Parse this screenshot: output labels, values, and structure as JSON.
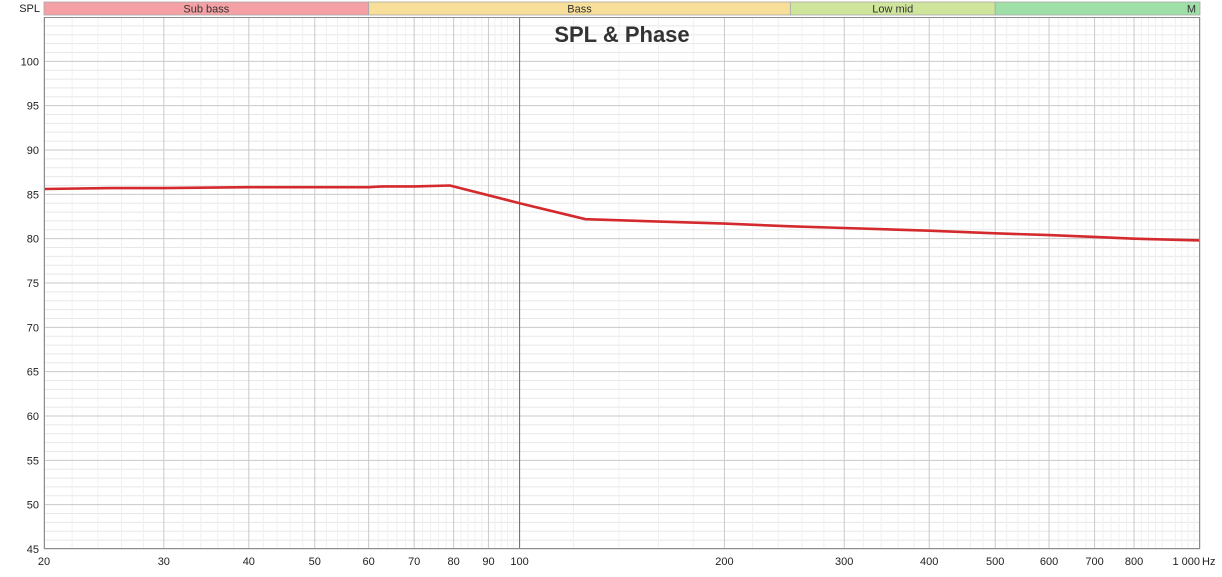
{
  "chart_data": {
    "type": "line",
    "title": "SPL & Phase",
    "ylabel": "SPL",
    "xunit": "Hz",
    "xscale": "log",
    "xlim": [
      20,
      1000
    ],
    "ylim": [
      45,
      105
    ],
    "grid": true,
    "x_ticks": [
      {
        "value": 20,
        "label": "20"
      },
      {
        "value": 30,
        "label": "30"
      },
      {
        "value": 40,
        "label": "40"
      },
      {
        "value": 50,
        "label": "50"
      },
      {
        "value": 60,
        "label": "60"
      },
      {
        "value": 70,
        "label": "70"
      },
      {
        "value": 80,
        "label": "80"
      },
      {
        "value": 90,
        "label": "90"
      },
      {
        "value": 100,
        "label": "100"
      },
      {
        "value": 200,
        "label": "200"
      },
      {
        "value": 300,
        "label": "300"
      },
      {
        "value": 400,
        "label": "400"
      },
      {
        "value": 500,
        "label": "500"
      },
      {
        "value": 600,
        "label": "600"
      },
      {
        "value": 700,
        "label": "700"
      },
      {
        "value": 800,
        "label": "800"
      },
      {
        "value": 1000,
        "label": "1 000"
      }
    ],
    "y_ticks": [
      45,
      50,
      55,
      60,
      65,
      70,
      75,
      80,
      85,
      90,
      95,
      100
    ],
    "bands": [
      {
        "label": "Sub bass",
        "from": 20,
        "to": 60,
        "color": "#f4a0a4"
      },
      {
        "label": "Bass",
        "from": 60,
        "to": 250,
        "color": "#f7df9a"
      },
      {
        "label": "Low mid",
        "from": 250,
        "to": 500,
        "color": "#cfe59c"
      },
      {
        "label": "M",
        "from": 500,
        "to": 1000,
        "color": "#9fdfa8"
      }
    ],
    "cursor_x": 100,
    "series": [
      {
        "color": "#d42a2e",
        "x": [
          20,
          25,
          30,
          40,
          50,
          60,
          63,
          70,
          79,
          100,
          125,
          150,
          200,
          250,
          300,
          400,
          500,
          600,
          700,
          800,
          1000
        ],
        "y": [
          85.6,
          85.7,
          85.7,
          85.8,
          85.8,
          85.8,
          85.9,
          85.9,
          86.0,
          84.0,
          82.2,
          82.0,
          81.7,
          81.4,
          81.2,
          80.9,
          80.6,
          80.4,
          80.2,
          80.0,
          79.8
        ]
      }
    ]
  }
}
